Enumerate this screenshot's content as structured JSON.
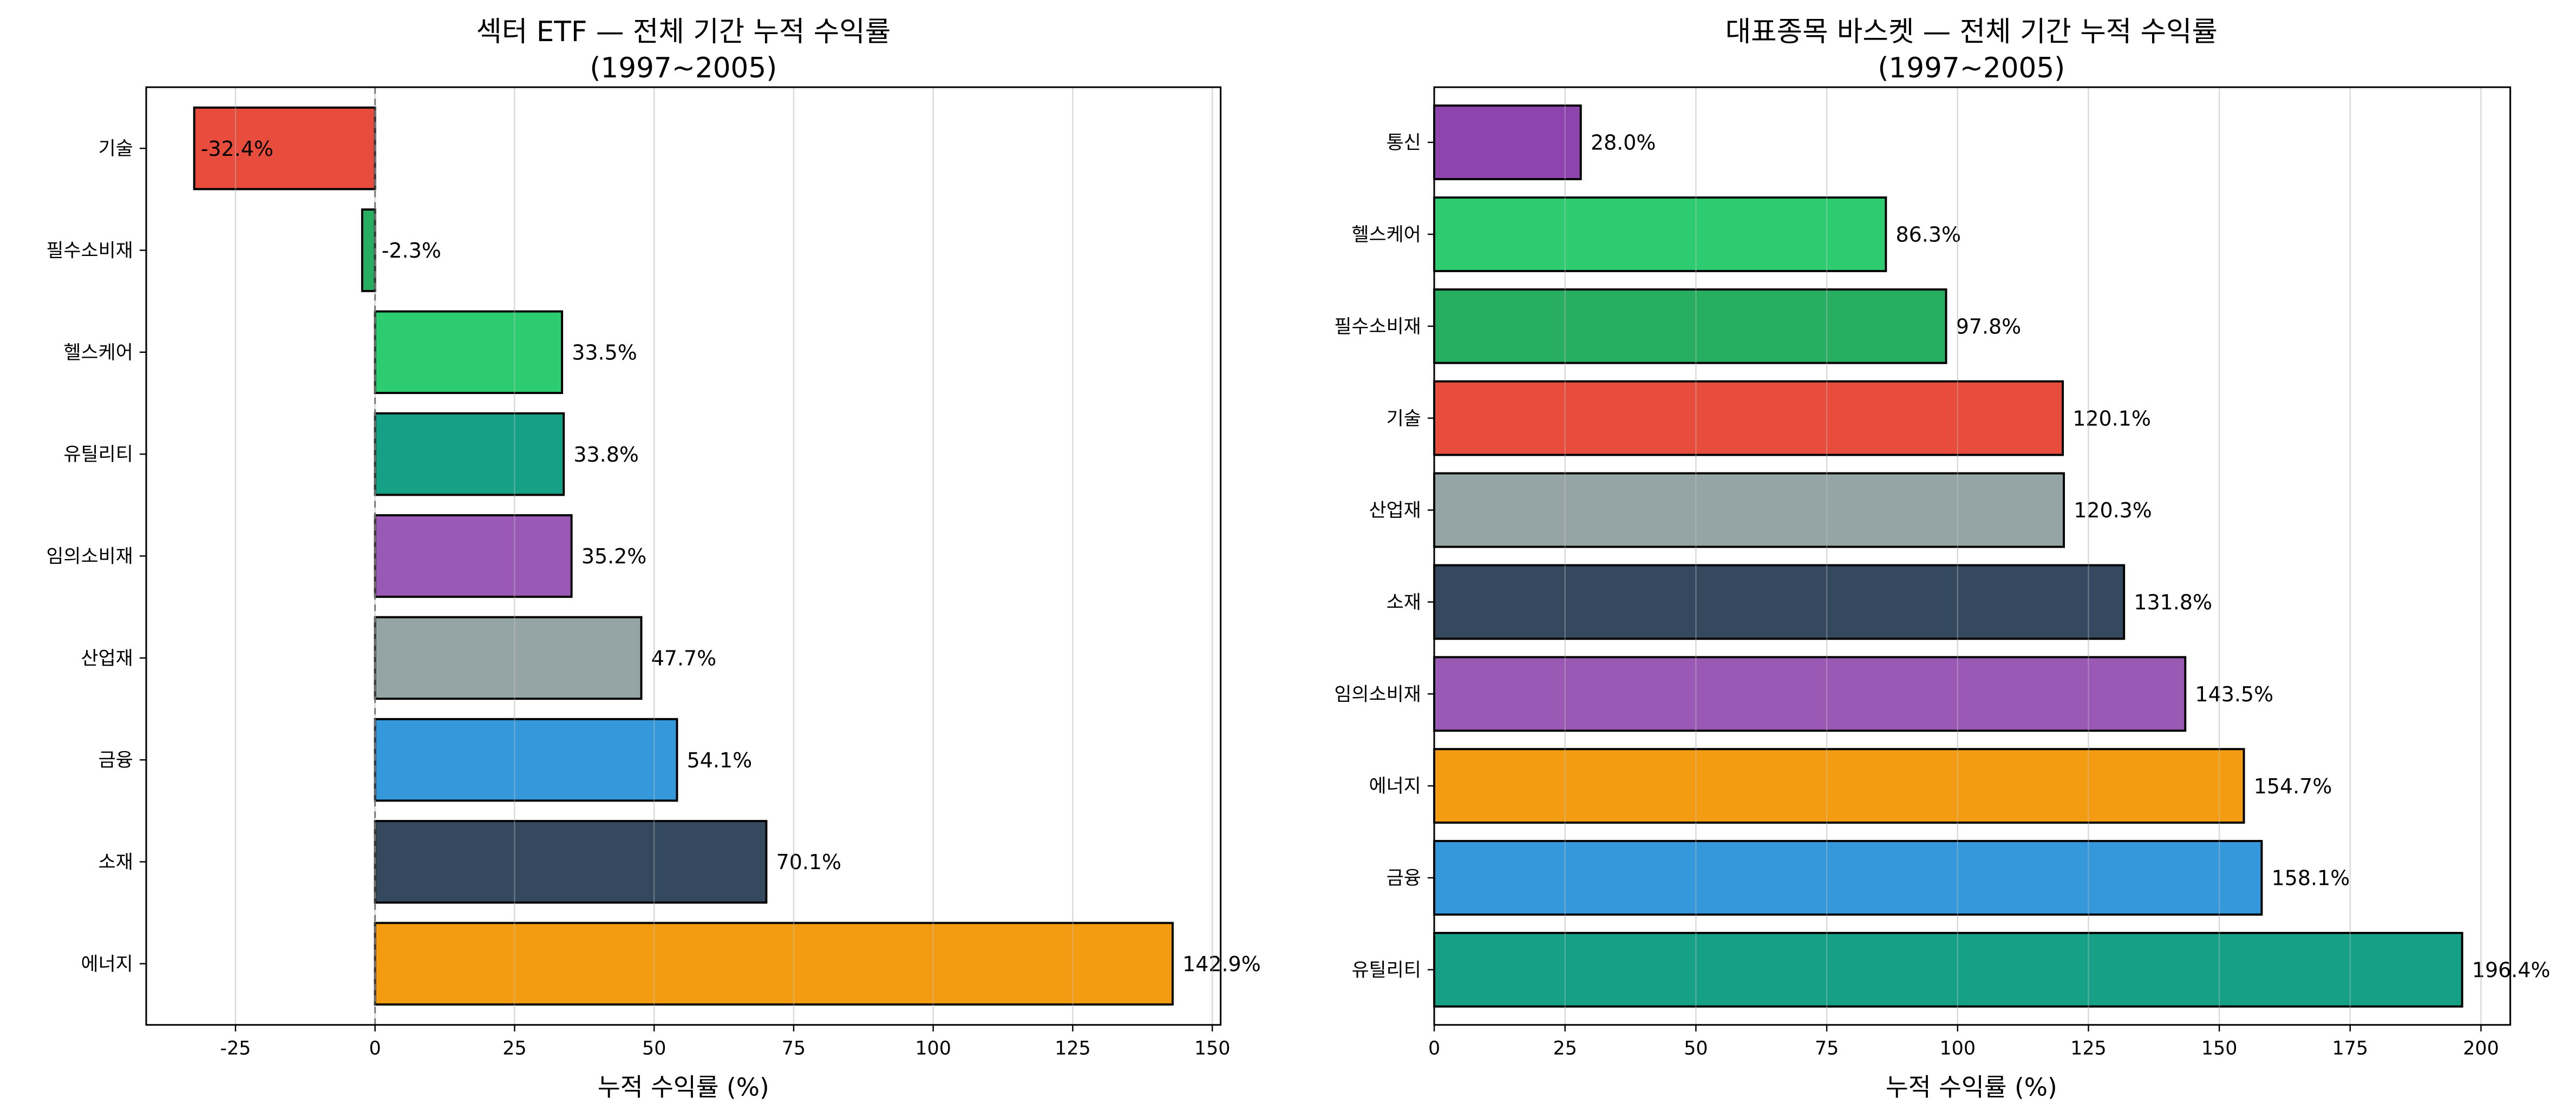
{
  "chart_data": [
    {
      "type": "bar",
      "orientation": "horizontal",
      "title_line1": "섹터 ETF — 전체 기간 누적 수익률",
      "title_line2": "(1997~2005)",
      "xlabel": "누적 수익률 (%)",
      "ylabel": "",
      "xlim": [
        -41,
        151.5
      ],
      "xticks": [
        -25,
        0,
        25,
        50,
        75,
        100,
        125,
        150
      ],
      "xtick_labels": [
        "-25",
        "0",
        "25",
        "50",
        "75",
        "100",
        "125",
        "150"
      ],
      "grid": "x",
      "zero_line": true,
      "categories": [
        "기술",
        "필수소비재",
        "헬스케어",
        "유틸리티",
        "임의소비재",
        "산업재",
        "금융",
        "소재",
        "에너지"
      ],
      "values": [
        -32.4,
        -2.3,
        33.5,
        33.8,
        35.2,
        47.7,
        54.1,
        70.1,
        142.9
      ],
      "labels": [
        "-32.4%",
        "-2.3%",
        "33.5%",
        "33.8%",
        "35.2%",
        "47.7%",
        "54.1%",
        "70.1%",
        "142.9%"
      ],
      "colors": [
        "#e74c3c",
        "#27ae60",
        "#2ecc71",
        "#16a085",
        "#9b59b6",
        "#95a5a6",
        "#3498db",
        "#34495e",
        "#f39c12"
      ]
    },
    {
      "type": "bar",
      "orientation": "horizontal",
      "title_line1": "대표종목 바스켓 — 전체 기간 누적 수익률",
      "title_line2": "(1997~2005)",
      "xlabel": "누적 수익률 (%)",
      "ylabel": "",
      "xlim": [
        0,
        205.6
      ],
      "xticks": [
        0,
        25,
        50,
        75,
        100,
        125,
        150,
        175,
        200
      ],
      "xtick_labels": [
        "0",
        "25",
        "50",
        "75",
        "100",
        "125",
        "150",
        "175",
        "200"
      ],
      "grid": "x",
      "zero_line": false,
      "categories": [
        "통신",
        "헬스케어",
        "필수소비재",
        "기술",
        "산업재",
        "소재",
        "임의소비재",
        "에너지",
        "금융",
        "유틸리티"
      ],
      "values": [
        28.0,
        86.3,
        97.8,
        120.1,
        120.3,
        131.8,
        143.5,
        154.7,
        158.1,
        196.4
      ],
      "labels": [
        "28.0%",
        "86.3%",
        "97.8%",
        "120.1%",
        "120.3%",
        "131.8%",
        "143.5%",
        "154.7%",
        "158.1%",
        "196.4%"
      ],
      "colors": [
        "#8e44ad",
        "#2ecc71",
        "#27ae60",
        "#e74c3c",
        "#95a5a6",
        "#34495e",
        "#9b59b6",
        "#f39c12",
        "#3498db",
        "#16a085"
      ]
    }
  ]
}
